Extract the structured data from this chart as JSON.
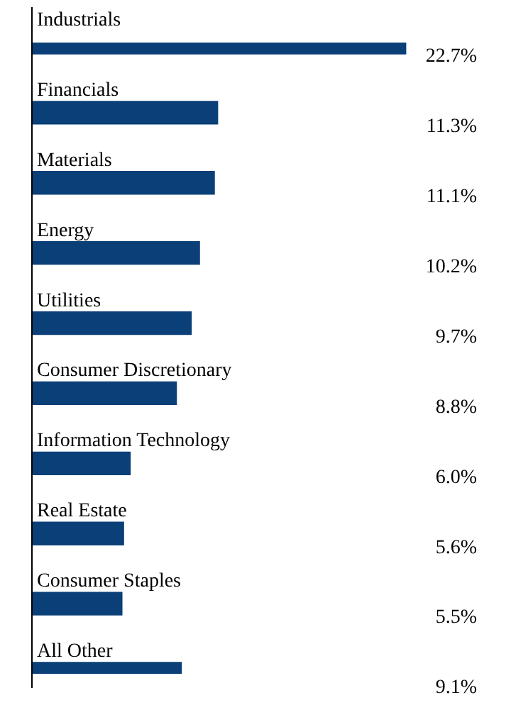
{
  "chart_data": {
    "type": "bar",
    "orientation": "horizontal",
    "categories": [
      "Industrials",
      "Financials",
      "Materials",
      "Energy",
      "Utilities",
      "Consumer Discretionary",
      "Information Technology",
      "Real Estate",
      "Consumer Staples",
      "All Other"
    ],
    "values": [
      22.7,
      11.3,
      11.1,
      10.2,
      9.7,
      8.8,
      6.0,
      5.6,
      5.5,
      9.1
    ],
    "value_labels": [
      "22.7%",
      "11.3%",
      "11.1%",
      "10.2%",
      "9.7%",
      "8.8%",
      "6.0%",
      "5.6%",
      "5.5%",
      "9.1%"
    ],
    "color": "#0b3f77",
    "legend": false
  }
}
